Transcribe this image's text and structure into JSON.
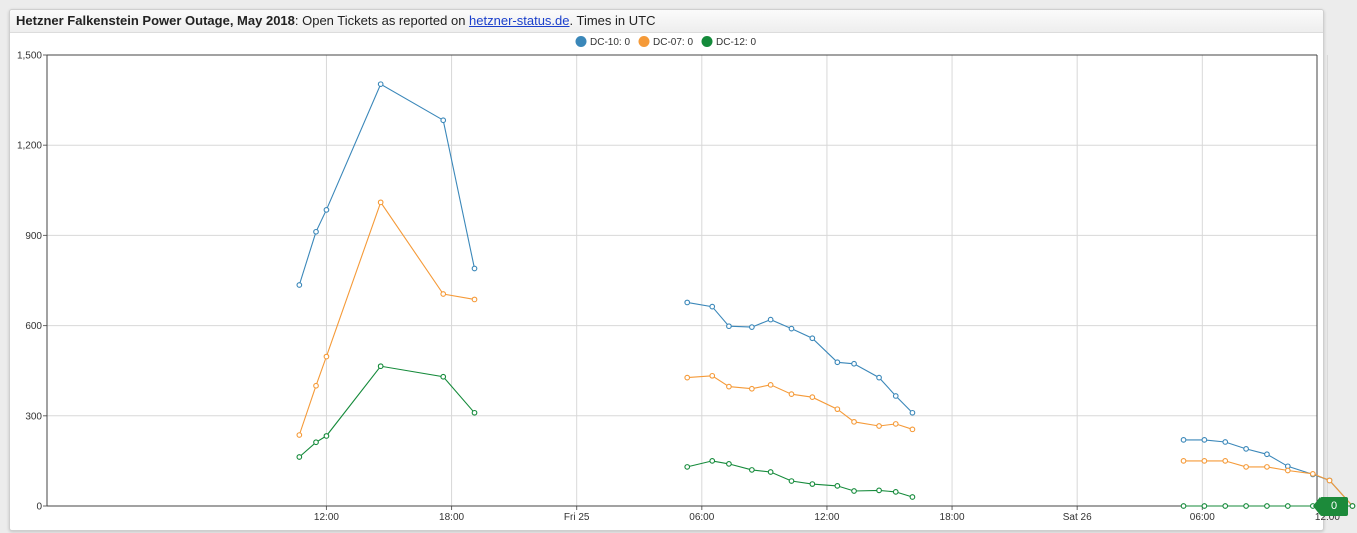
{
  "header": {
    "title_bold": "Hetzner Falkenstein Power Outage, May 2018",
    "title_rest": ": Open Tickets as reported on ",
    "link_text": "hetzner-status.de",
    "title_end": ". Times in UTC"
  },
  "badge": {
    "value": "0",
    "color": "#1c8a3a"
  },
  "chart_data": {
    "type": "line",
    "title": "Hetzner Falkenstein Power Outage, May 2018: Open Tickets as reported on hetzner-status.de. Times in UTC",
    "legend_position": "top-center",
    "grid": true,
    "x_axis": {
      "range_hours": [
        -13.4,
        47.5
      ],
      "ticks": [
        {
          "hours": 0,
          "label": "12:00"
        },
        {
          "hours": 6,
          "label": "18:00"
        },
        {
          "hours": 12,
          "label": "Fri 25"
        },
        {
          "hours": 18,
          "label": "06:00"
        },
        {
          "hours": 24,
          "label": "12:00"
        },
        {
          "hours": 30,
          "label": "18:00"
        },
        {
          "hours": 36,
          "label": "Sat 26"
        },
        {
          "hours": 42,
          "label": "06:00"
        },
        {
          "hours": 48,
          "label": "12:00"
        }
      ]
    },
    "y_axis": {
      "ylim": [
        0,
        1500
      ],
      "ticks": [
        {
          "value": 0,
          "label": "0"
        },
        {
          "value": 300,
          "label": "300"
        },
        {
          "value": 600,
          "label": "600"
        },
        {
          "value": 900,
          "label": "900"
        },
        {
          "value": 1200,
          "label": "1,200"
        },
        {
          "value": 1500,
          "label": "1,500"
        }
      ]
    },
    "series": [
      {
        "name": "DC-10",
        "legend_label": "DC-10: 0",
        "color": "#3a87b9",
        "segments": [
          [
            [
              -1.3,
              735
            ],
            [
              -0.5,
              912
            ],
            [
              0,
              985
            ],
            [
              2.6,
              1403
            ],
            [
              5.6,
              1283
            ],
            [
              7.1,
              790
            ]
          ],
          [
            [
              17.3,
              677
            ],
            [
              18.5,
              663
            ],
            [
              19.3,
              598
            ],
            [
              20.4,
              595
            ],
            [
              21.3,
              620
            ],
            [
              22.3,
              590
            ],
            [
              23.3,
              558
            ],
            [
              24.5,
              478
            ],
            [
              25.3,
              473
            ],
            [
              26.5,
              427
            ],
            [
              27.3,
              366
            ],
            [
              28.1,
              310
            ]
          ],
          [
            [
              41.1,
              220
            ],
            [
              42.1,
              220
            ],
            [
              43.1,
              213
            ],
            [
              44.1,
              190
            ],
            [
              45.1,
              172
            ],
            [
              46.1,
              132
            ],
            [
              47.3,
              105
            ],
            [
              48.1,
              85
            ],
            [
              49.2,
              0
            ]
          ]
        ]
      },
      {
        "name": "DC-07",
        "legend_label": "DC-07: 0",
        "color": "#f59a38",
        "segments": [
          [
            [
              -1.3,
              236
            ],
            [
              -0.5,
              400
            ],
            [
              0,
              497
            ],
            [
              2.6,
              1010
            ],
            [
              5.6,
              705
            ],
            [
              7.1,
              687
            ]
          ],
          [
            [
              17.3,
              427
            ],
            [
              18.5,
              433
            ],
            [
              19.3,
              397
            ],
            [
              20.4,
              390
            ],
            [
              21.3,
              403
            ],
            [
              22.3,
              372
            ],
            [
              23.3,
              362
            ],
            [
              24.5,
              322
            ],
            [
              25.3,
              280
            ],
            [
              26.5,
              266
            ],
            [
              27.3,
              273
            ],
            [
              28.1,
              255
            ]
          ],
          [
            [
              41.1,
              150
            ],
            [
              42.1,
              150
            ],
            [
              43.1,
              150
            ],
            [
              44.1,
              130
            ],
            [
              45.1,
              130
            ],
            [
              46.1,
              118
            ],
            [
              47.3,
              107
            ],
            [
              48.1,
              85
            ],
            [
              49.2,
              0
            ]
          ]
        ]
      },
      {
        "name": "DC-12",
        "legend_label": "DC-12: 0",
        "color": "#148a3a",
        "segments": [
          [
            [
              -1.3,
              163
            ],
            [
              -0.5,
              212
            ],
            [
              0,
              233
            ],
            [
              2.6,
              465
            ],
            [
              5.6,
              430
            ],
            [
              7.1,
              310
            ]
          ],
          [
            [
              17.3,
              130
            ],
            [
              18.5,
              150
            ],
            [
              19.3,
              140
            ],
            [
              20.4,
              120
            ],
            [
              21.3,
              113
            ],
            [
              22.3,
              83
            ],
            [
              23.3,
              73
            ],
            [
              24.5,
              67
            ],
            [
              25.3,
              50
            ],
            [
              26.5,
              52
            ],
            [
              27.3,
              47
            ],
            [
              28.1,
              30
            ]
          ],
          [
            [
              41.1,
              0
            ],
            [
              42.1,
              0
            ],
            [
              43.1,
              0
            ],
            [
              44.1,
              0
            ],
            [
              45.1,
              0
            ],
            [
              46.1,
              0
            ],
            [
              47.3,
              0
            ],
            [
              48.1,
              0
            ],
            [
              49.2,
              0
            ]
          ]
        ]
      }
    ]
  }
}
